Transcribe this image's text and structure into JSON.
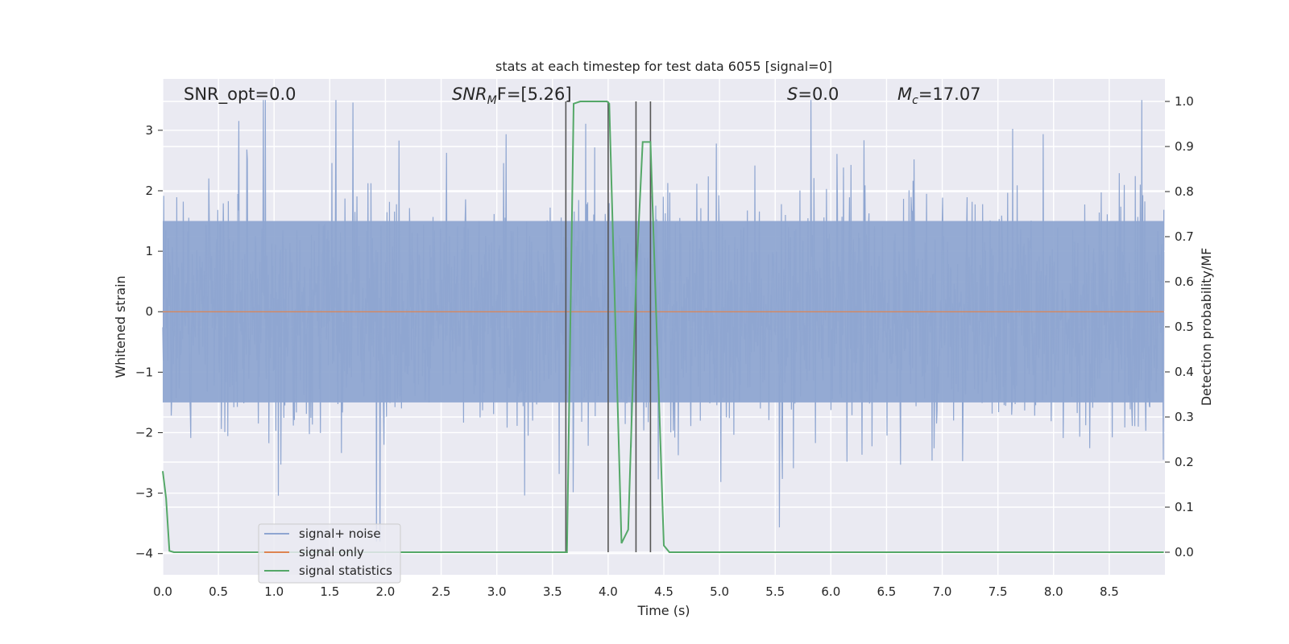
{
  "chart_data": {
    "type": "line",
    "title": "stats at each timestep for test data 6055 [signal=0]",
    "xlabel": "Time (s)",
    "ylabel_left": "Whitened strain",
    "ylabel_right": "Detection probability/MF",
    "xlim": [
      0.0,
      9.0
    ],
    "ylim_left": [
      -4.35,
      3.85
    ],
    "ylim_right": [
      -0.05,
      1.05
    ],
    "xticks": [
      "0.0",
      "0.5",
      "1.0",
      "1.5",
      "2.0",
      "2.5",
      "3.0",
      "3.5",
      "4.0",
      "4.5",
      "5.0",
      "5.5",
      "6.0",
      "6.5",
      "7.0",
      "7.5",
      "8.0",
      "8.5"
    ],
    "yticks_left": [
      "3",
      "2",
      "1",
      "0",
      "−1",
      "−2",
      "−3",
      "−4"
    ],
    "yticks_right": [
      "1.0",
      "0.9",
      "0.8",
      "0.7",
      "0.6",
      "0.5",
      "0.4",
      "0.3",
      "0.2",
      "0.1",
      "0.0"
    ],
    "grid": true,
    "legend_position": "lower-left",
    "annotations": {
      "snr_opt": "SNR_opt=0.0",
      "snr_mf_main": "SNR",
      "snr_mf_sub": "M",
      "snr_mf_rest": "F=[5.26]",
      "s_sym": "S",
      "s_rest": "=0.0",
      "mc_sym": "M",
      "mc_sub": "c",
      "mc_rest": "=17.07"
    },
    "vertical_markers_x": [
      3.62,
      4.0,
      4.25,
      4.38
    ],
    "series": [
      {
        "name": "signal+ noise",
        "axis": "left",
        "color": "#8fa6d1",
        "style": "dense noisy trace spanning roughly -3.8 to 3.5",
        "envelope_typical": [
          -1.7,
          1.7
        ],
        "x": [
          0.0,
          8.99
        ]
      },
      {
        "name": "signal only",
        "axis": "left",
        "color": "#dd8452",
        "x": [
          0.0,
          8.99
        ],
        "y": [
          0,
          0
        ]
      },
      {
        "name": "signal statistics",
        "axis": "right",
        "color": "#55a868",
        "x": [
          0.0,
          0.03,
          0.06,
          0.1,
          0.15,
          3.62,
          3.63,
          3.69,
          3.75,
          3.99,
          4.01,
          4.12,
          4.18,
          4.25,
          4.31,
          4.38,
          4.5,
          4.55,
          8.99
        ],
        "y": [
          0.18,
          0.12,
          0.003,
          0.0,
          0.0,
          0.0,
          0.0,
          0.995,
          1.0,
          1.0,
          0.995,
          0.02,
          0.05,
          0.6,
          0.91,
          0.91,
          0.015,
          0.0,
          0.0
        ]
      }
    ]
  }
}
